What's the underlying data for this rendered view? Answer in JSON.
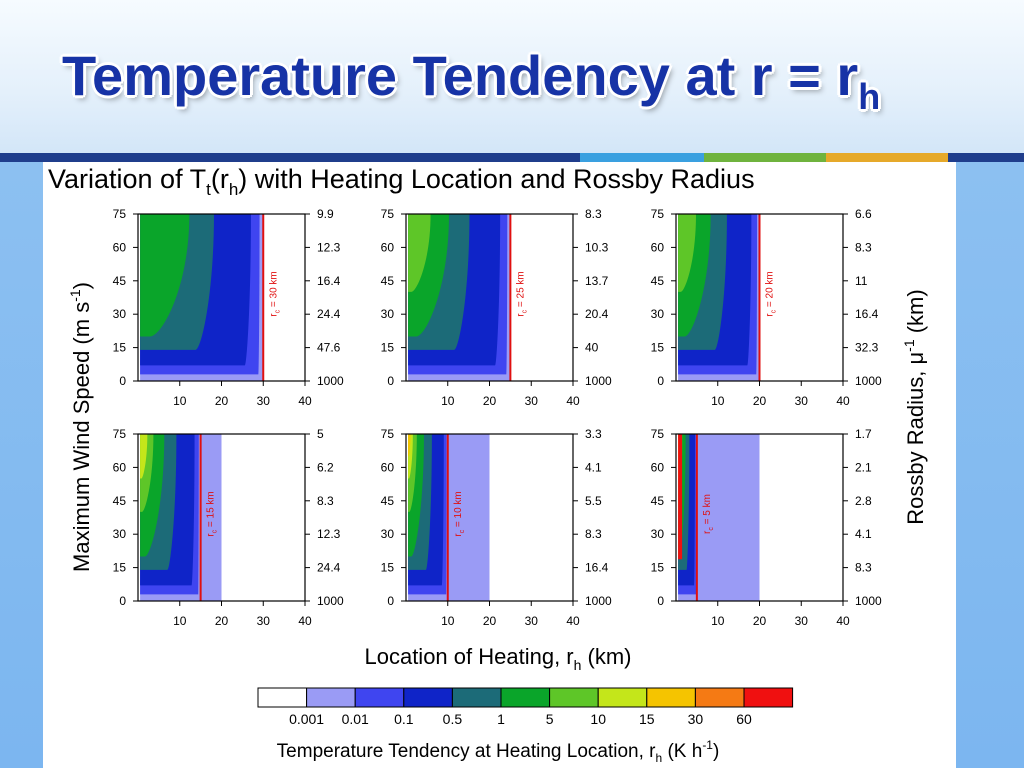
{
  "slide": {
    "title_main": "Temperature Tendency at r = r",
    "title_sub": "h",
    "accent_colors": [
      "#3aa0e0",
      "#6fb33e",
      "#e6a92a"
    ]
  },
  "figure": {
    "title_prefix": "Variation of T",
    "title_sub1": "t",
    "title_mid": "(r",
    "title_sub2": "h",
    "title_suffix": ") with Heating Location and Rossby Radius",
    "ylabel_left": "Maximum Wind Speed (m s",
    "ylabel_left_sup": "-1",
    "ylabel_left_end": ")",
    "ylabel_right": "Rossby Radius, μ",
    "ylabel_right_sup": "-1",
    "ylabel_right_end": " (km)",
    "xlabel": "Location of Heating, r",
    "xlabel_sub": "h",
    "xlabel_end": " (km)",
    "colorbar_label": "Temperature Tendency at Heating Location, r",
    "colorbar_label_sub": "h",
    "colorbar_label_end": " (K h",
    "colorbar_label_sup": "-1",
    "colorbar_label_close": ")",
    "colorbar_colors": [
      "#ffffff",
      "#9a9bf5",
      "#3f45f0",
      "#0f24c8",
      "#1c6b78",
      "#0aa52a",
      "#5ec628",
      "#c4e61a",
      "#f5c400",
      "#f57a14",
      "#f01010"
    ],
    "colorbar_ticks": [
      "0.001",
      "0.01",
      "0.1",
      "0.5",
      "1",
      "5",
      "10",
      "15",
      "30",
      "60"
    ]
  },
  "chart_data": [
    {
      "type": "heatmap",
      "panel": "r_c = 30 km",
      "rc_km": 30,
      "annotation": "r",
      "annotation_sub": "c",
      "annotation_end": " = 30 km",
      "x": [
        0,
        10,
        20,
        30,
        40
      ],
      "xticks": [
        "10",
        "20",
        "30",
        "40"
      ],
      "xlim": [
        0,
        40
      ],
      "yticks": [
        "0",
        "15",
        "30",
        "45",
        "60",
        "75"
      ],
      "ylim": [
        0,
        75
      ],
      "rossby_ticks": [
        "1000",
        "47.6",
        "24.4",
        "16.4",
        "12.3",
        "9.9"
      ]
    },
    {
      "type": "heatmap",
      "panel": "r_c = 25 km",
      "rc_km": 25,
      "annotation": "r",
      "annotation_sub": "c",
      "annotation_end": " = 25 km",
      "xticks": [
        "10",
        "20",
        "30",
        "40"
      ],
      "xlim": [
        0,
        40
      ],
      "yticks": [
        "0",
        "15",
        "30",
        "45",
        "60",
        "75"
      ],
      "ylim": [
        0,
        75
      ],
      "rossby_ticks": [
        "1000",
        "40",
        "20.4",
        "13.7",
        "10.3",
        "8.3"
      ]
    },
    {
      "type": "heatmap",
      "panel": "r_c = 20 km",
      "rc_km": 20,
      "annotation": "r",
      "annotation_sub": "c",
      "annotation_end": " = 20 km",
      "xticks": [
        "10",
        "20",
        "30",
        "40"
      ],
      "xlim": [
        0,
        40
      ],
      "yticks": [
        "0",
        "15",
        "30",
        "45",
        "60",
        "75"
      ],
      "ylim": [
        0,
        75
      ],
      "rossby_ticks": [
        "1000",
        "32.3",
        "16.4",
        "11",
        "8.3",
        "6.6"
      ]
    },
    {
      "type": "heatmap",
      "panel": "r_c = 15 km",
      "rc_km": 15,
      "annotation": "r",
      "annotation_sub": "c",
      "annotation_end": " = 15 km",
      "xticks": [
        "10",
        "20",
        "30",
        "40"
      ],
      "xlim": [
        0,
        40
      ],
      "yticks": [
        "0",
        "15",
        "30",
        "45",
        "60",
        "75"
      ],
      "ylim": [
        0,
        75
      ],
      "rossby_ticks": [
        "1000",
        "24.4",
        "12.3",
        "8.3",
        "6.2",
        "5"
      ]
    },
    {
      "type": "heatmap",
      "panel": "r_c = 10 km",
      "rc_km": 10,
      "annotation": "r",
      "annotation_sub": "c",
      "annotation_end": " = 10 km",
      "xticks": [
        "10",
        "20",
        "30",
        "40"
      ],
      "xlim": [
        0,
        40
      ],
      "yticks": [
        "0",
        "15",
        "30",
        "45",
        "60",
        "75"
      ],
      "ylim": [
        0,
        75
      ],
      "rossby_ticks": [
        "1000",
        "16.4",
        "8.3",
        "5.5",
        "4.1",
        "3.3"
      ]
    },
    {
      "type": "heatmap",
      "panel": "r_c = 5 km",
      "rc_km": 5,
      "annotation": "r",
      "annotation_sub": "c",
      "annotation_end": " = 5 km",
      "xticks": [
        "10",
        "20",
        "30",
        "40"
      ],
      "xlim": [
        0,
        40
      ],
      "yticks": [
        "0",
        "15",
        "30",
        "45",
        "60",
        "75"
      ],
      "ylim": [
        0,
        75
      ],
      "rossby_ticks": [
        "1000",
        "8.3",
        "4.1",
        "2.8",
        "2.1",
        "1.7"
      ]
    }
  ]
}
